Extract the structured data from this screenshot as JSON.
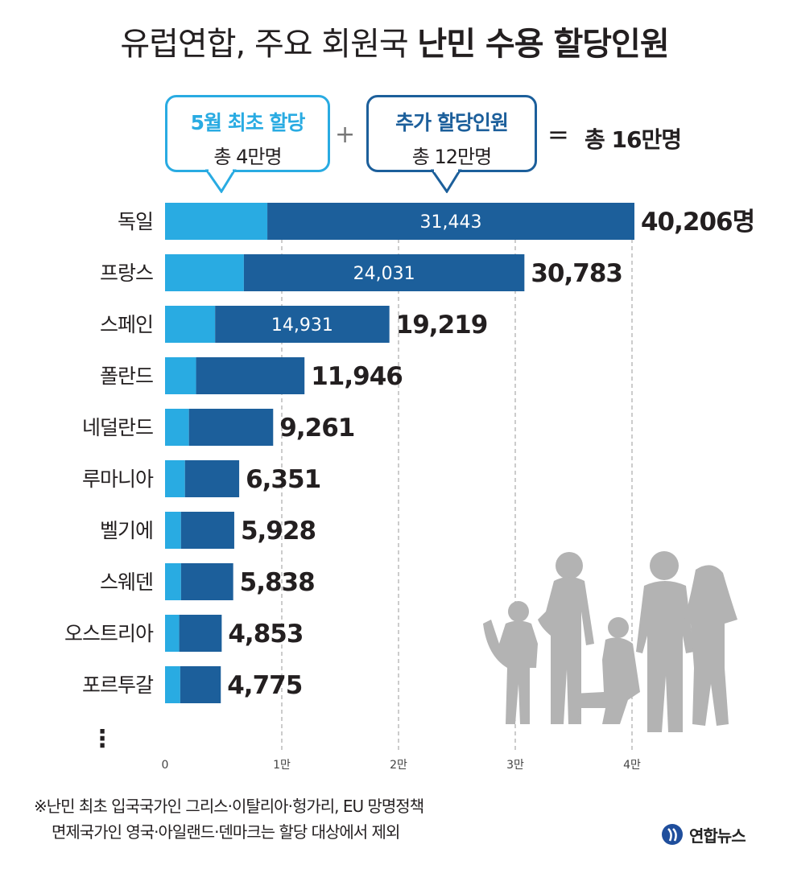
{
  "title": {
    "normal": "유럽연합, 주요 회원국",
    "bold": "난민 수용 할당인원"
  },
  "legend": {
    "initial": {
      "head": "5월 최초 할당",
      "sub": "총 4만명"
    },
    "plus": "+",
    "additional": {
      "head": "추가 할당인원",
      "sub": "총 12만명"
    },
    "equals": "=",
    "total": "총 16만명"
  },
  "chart_data": {
    "type": "bar",
    "orientation": "horizontal",
    "stacked": true,
    "categories": [
      "독일",
      "프랑스",
      "스페인",
      "폴란드",
      "네덜란드",
      "루마니아",
      "벨기에",
      "스웨덴",
      "오스트리아",
      "포르투갈"
    ],
    "series": [
      {
        "name": "5월 최초 할당",
        "values": [
          8763,
          6752,
          4288,
          2659,
          2047,
          1705,
          1364,
          1369,
          1213,
          1301
        ]
      },
      {
        "name": "추가 할당인원",
        "values": [
          31443,
          24031,
          14931,
          9287,
          7214,
          4646,
          4564,
          4469,
          3640,
          3474
        ]
      }
    ],
    "segment_labels": [
      "31,443",
      "24,031",
      "14,931",
      "",
      "",
      "",
      "",
      "",
      "",
      ""
    ],
    "total_labels": [
      "40,206명",
      "30,783",
      "19,219",
      "11,946",
      "9,261",
      "6,351",
      "5,928",
      "5,838",
      "4,853",
      "4,775"
    ],
    "xlim": [
      0,
      40000
    ],
    "xticks": [
      0,
      10000,
      20000,
      30000,
      40000
    ],
    "xtick_labels": [
      "0",
      "1만",
      "2만",
      "3만",
      "4만"
    ],
    "grid": "vertical dashed",
    "colors": {
      "initial": "#29abe2",
      "additional": "#1c5f9b"
    },
    "continuation": "⋮"
  },
  "footnote": {
    "line1": "※난민 최초 입국국가인 그리스·이탈리아·헝가리, EU 망명정책",
    "line2": "면제국가인 영국·아일랜드·덴마크는 할당 대상에서 제외"
  },
  "source": {
    "logo_text": "연합뉴스",
    "logo_icon": "yonhap-logo-icon"
  }
}
